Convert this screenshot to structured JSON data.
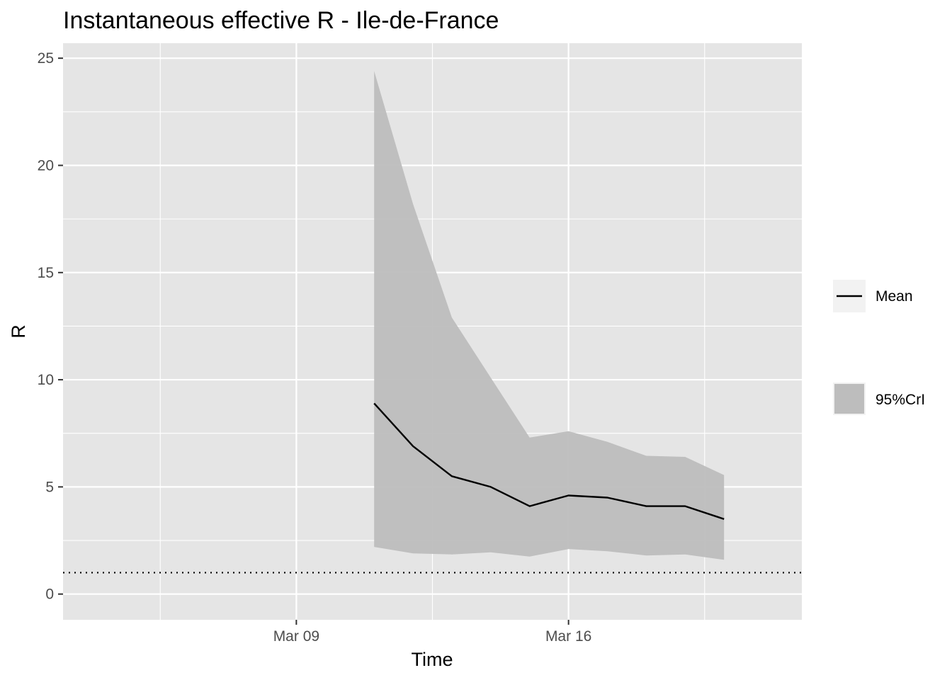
{
  "chart_data": {
    "type": "line",
    "title": "Instantaneous effective R -  Ile-de-France",
    "xlabel": "Time",
    "ylabel": "R",
    "x_ticks": [
      "Mar 09",
      "Mar 16"
    ],
    "y_ticks": [
      "0",
      "5",
      "10",
      "15",
      "20",
      "25"
    ],
    "ylim": [
      -1.2,
      25.7
    ],
    "xlim": [
      "2020-03-03",
      "2020-03-22"
    ],
    "grid": true,
    "legend_position": "right",
    "reference_line": {
      "y": 1,
      "style": "dotted"
    },
    "x": [
      "2020-03-11",
      "2020-03-12",
      "2020-03-13",
      "2020-03-14",
      "2020-03-15",
      "2020-03-16",
      "2020-03-17",
      "2020-03-18",
      "2020-03-19",
      "2020-03-20"
    ],
    "series": [
      {
        "name": "Mean",
        "type": "line",
        "color": "#000000",
        "values": [
          8.9,
          6.9,
          5.5,
          5.0,
          4.1,
          4.6,
          4.5,
          4.1,
          4.1,
          3.5
        ]
      },
      {
        "name": "95%CrI",
        "type": "band",
        "color": "#bdbdbd",
        "lower": [
          2.2,
          1.9,
          1.85,
          1.95,
          1.75,
          2.1,
          2.0,
          1.8,
          1.85,
          1.6
        ],
        "upper": [
          24.4,
          18.2,
          12.9,
          10.1,
          7.3,
          7.6,
          7.1,
          6.45,
          6.4,
          5.55
        ]
      }
    ]
  },
  "colors": {
    "panel": "#e5e5e5",
    "grid": "#ffffff",
    "band": "#bdbdbd",
    "line": "#000000"
  }
}
